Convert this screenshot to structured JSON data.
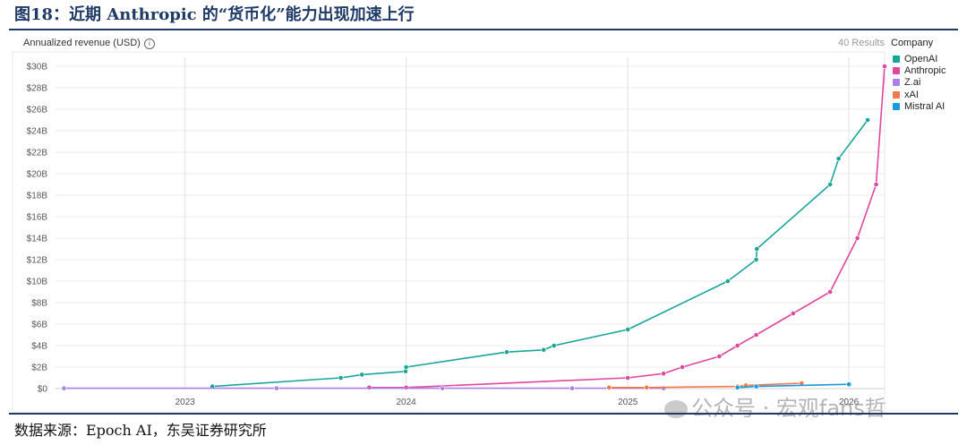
{
  "figure_title": "图18：近期 Anthropic 的“货币化”能力出现加速上行",
  "source": "数据来源：Epoch AI，东吴证券研究所",
  "watermark": "公众号 · 宏观fans哲",
  "icons": {
    "info": "info-circle-icon",
    "watermark_logo": "wechat-logo-icon"
  },
  "results_label": "40 Results",
  "chart_data": {
    "type": "line",
    "ylabel": "Annualized revenue (USD)",
    "legend_title": "Company",
    "legend_position": "top-right",
    "grid": true,
    "x_tick_labels": [
      "2023",
      "2024",
      "2025",
      "2026"
    ],
    "y_tick_labels": [
      "$0",
      "$2B",
      "$4B",
      "$6B",
      "$8B",
      "$10B",
      "$12B",
      "$14B",
      "$16B",
      "$18B",
      "$20B",
      "$22B",
      "$24B",
      "$26B",
      "$28B",
      "$30B"
    ],
    "ylim": [
      0,
      30
    ],
    "xlim": [
      "2022-06-01",
      "2026-03-01"
    ],
    "series": [
      {
        "name": "OpenAI",
        "color": "#1aa59a",
        "points": [
          [
            "2023-02-15",
            0.2
          ],
          [
            "2023-09-15",
            1.0
          ],
          [
            "2023-10-20",
            1.3
          ],
          [
            "2023-12-31",
            1.6
          ],
          [
            "2024-01-01",
            2.0
          ],
          [
            "2024-06-15",
            3.4
          ],
          [
            "2024-08-15",
            3.6
          ],
          [
            "2024-09-01",
            4.0
          ],
          [
            "2025-01-01",
            5.5
          ],
          [
            "2025-06-15",
            10.0
          ],
          [
            "2025-08-01",
            12.0
          ],
          [
            "2025-08-02",
            13.0
          ],
          [
            "2025-12-01",
            19.0
          ],
          [
            "2025-12-15",
            21.4
          ],
          [
            "2026-02-01",
            25.0
          ]
        ]
      },
      {
        "name": "Anthropic",
        "color": "#e0479e",
        "points": [
          [
            "2023-11-01",
            0.1
          ],
          [
            "2024-01-01",
            0.1
          ],
          [
            "2025-01-01",
            1.0
          ],
          [
            "2025-03-01",
            1.4
          ],
          [
            "2025-04-01",
            2.0
          ],
          [
            "2025-06-01",
            3.0
          ],
          [
            "2025-07-01",
            4.0
          ],
          [
            "2025-08-01",
            5.0
          ],
          [
            "2025-10-01",
            7.0
          ],
          [
            "2025-12-01",
            9.0
          ],
          [
            "2026-01-15",
            14.0
          ],
          [
            "2026-02-15",
            19.0
          ],
          [
            "2026-03-01",
            30.0
          ]
        ]
      },
      {
        "name": "Z.ai",
        "color": "#b07ee8",
        "points": [
          [
            "2022-06-15",
            0.03
          ],
          [
            "2023-06-01",
            0.03
          ],
          [
            "2024-03-01",
            0.03
          ],
          [
            "2024-10-01",
            0.03
          ],
          [
            "2025-03-01",
            0.03
          ]
        ]
      },
      {
        "name": "xAI",
        "color": "#f07a4a",
        "points": [
          [
            "2024-12-01",
            0.1
          ],
          [
            "2025-02-01",
            0.1
          ],
          [
            "2025-07-01",
            0.2
          ],
          [
            "2025-07-15",
            0.3
          ],
          [
            "2025-10-15",
            0.5
          ]
        ]
      },
      {
        "name": "Mistral AI",
        "color": "#1a98e0",
        "points": [
          [
            "2025-07-01",
            0.1
          ],
          [
            "2025-08-01",
            0.2
          ],
          [
            "2026-01-01",
            0.4
          ]
        ]
      }
    ]
  }
}
